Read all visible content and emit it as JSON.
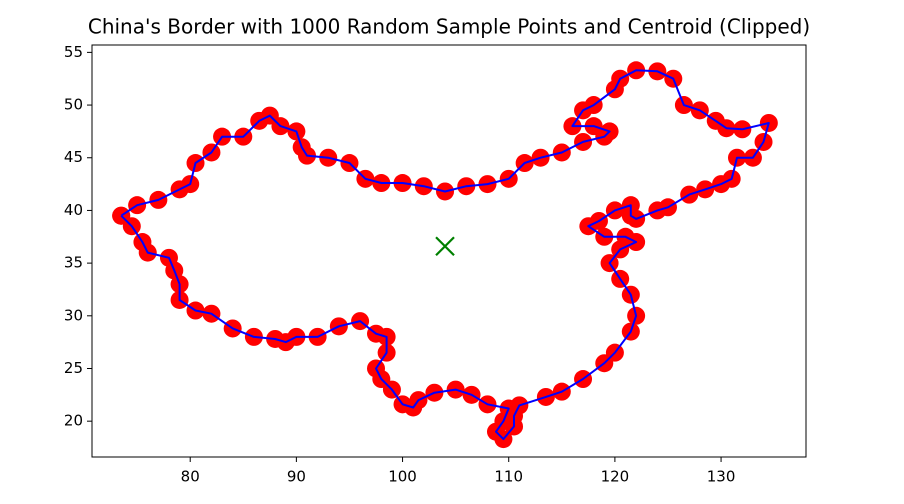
{
  "chart_data": {
    "type": "line",
    "title": "China's Border with 1000 Random Sample Points and Centroid (Clipped)",
    "xlim": [
      70.75,
      138.0
    ],
    "ylim": [
      16.6,
      55.7
    ],
    "xticks": [
      80,
      90,
      100,
      110,
      120,
      130
    ],
    "yticks": [
      20,
      25,
      30,
      35,
      40,
      45,
      50,
      55
    ],
    "series": [
      {
        "type": "scatter",
        "marker": "o",
        "color": "red",
        "x": [
          73.5,
          75,
          77,
          79,
          80,
          80.5,
          82,
          83,
          85,
          86.5,
          87.5,
          88.5,
          90,
          90.5,
          91,
          93,
          95,
          96.5,
          98,
          100,
          102,
          104,
          106,
          108,
          110,
          111.5,
          113,
          115,
          117,
          119,
          119.5,
          118,
          116,
          117,
          118,
          120,
          120.5,
          122,
          124,
          125.5,
          126.5,
          128,
          129.5,
          130.5,
          132,
          134.5,
          134,
          133,
          131.5,
          131,
          130,
          128.5,
          127,
          125,
          124,
          122,
          121.5,
          121.5,
          120,
          118.5,
          117.5,
          119,
          121,
          122,
          120.5,
          119.5,
          120.5,
          121.5,
          122,
          121.5,
          120,
          119,
          117,
          115,
          113.5,
          111,
          110.5,
          110.5,
          109.5,
          108.8,
          109.5,
          110,
          108,
          106.5,
          105,
          103,
          101.5,
          101,
          100,
          99,
          98,
          97.5,
          98.5,
          98.5,
          97.5,
          96,
          94,
          92,
          90,
          89,
          88,
          86,
          84,
          82,
          80.5,
          79,
          79,
          78.5,
          78,
          76,
          75.5,
          74.5,
          73.5
        ],
        "values": [
          39.5,
          40.5,
          41,
          42,
          42.5,
          44.5,
          45.5,
          47,
          47,
          48.5,
          49,
          48,
          47.5,
          46,
          45.2,
          45,
          44.5,
          43,
          42.6,
          42.6,
          42.3,
          41.8,
          42.3,
          42.5,
          43,
          44.5,
          45,
          45.5,
          46.5,
          47,
          47.5,
          48,
          48,
          49.5,
          50,
          51.5,
          52.5,
          53.3,
          53.2,
          52.5,
          50,
          49.5,
          48.5,
          47.8,
          47.7,
          48.3,
          46.5,
          45,
          45,
          43,
          42.5,
          42,
          41.5,
          40.3,
          40,
          39.2,
          39.5,
          40.5,
          40,
          39,
          38.5,
          37.5,
          37.5,
          37,
          36.3,
          35,
          33.5,
          32,
          30,
          28.5,
          26.5,
          25.5,
          24,
          22.8,
          22.3,
          21.5,
          20.5,
          19.5,
          18.3,
          19,
          20,
          21.2,
          21.6,
          22.5,
          23,
          22.7,
          22,
          21.3,
          21.6,
          23,
          24,
          25,
          26.5,
          28,
          28.3,
          29.5,
          29,
          28,
          28,
          27.5,
          27.8,
          28,
          28.8,
          30.2,
          30.5,
          31.5,
          33,
          34.3,
          35.5,
          36,
          37,
          38.5,
          39.5
        ]
      },
      {
        "type": "line",
        "color": "blue",
        "x": [
          73.5,
          75,
          77,
          79,
          80,
          80.5,
          82,
          83,
          85,
          86.5,
          87.5,
          88.5,
          90,
          90.5,
          91,
          93,
          95,
          96.5,
          98,
          100,
          102,
          104,
          106,
          108,
          110,
          111.5,
          113,
          115,
          117,
          119,
          119.5,
          118,
          116,
          117,
          118,
          120,
          120.5,
          122,
          124,
          125.5,
          126.5,
          128,
          129.5,
          130.5,
          132,
          134.5,
          134,
          133,
          131.5,
          131,
          130,
          128.5,
          127,
          125,
          124,
          122,
          121.5,
          121.5,
          120,
          118.5,
          117.5,
          119,
          121,
          122,
          120.5,
          119.5,
          120.5,
          121.5,
          122,
          121.5,
          120,
          119,
          117,
          115,
          113.5,
          111,
          110.5,
          110.5,
          109.5,
          108.8,
          109.5,
          110,
          108,
          106.5,
          105,
          103,
          101.5,
          101,
          100,
          99,
          98,
          97.5,
          98.5,
          98.5,
          97.5,
          96,
          94,
          92,
          90,
          89,
          88,
          86,
          84,
          82,
          80.5,
          79,
          79,
          78.5,
          78,
          76,
          75.5,
          74.5,
          73.5
        ],
        "values": [
          39.5,
          40.5,
          41,
          42,
          42.5,
          44.5,
          45.5,
          47,
          47,
          48.5,
          49,
          48,
          47.5,
          46,
          45.2,
          45,
          44.5,
          43,
          42.6,
          42.6,
          42.3,
          41.8,
          42.3,
          42.5,
          43,
          44.5,
          45,
          45.5,
          46.5,
          47,
          47.5,
          48,
          48,
          49.5,
          50,
          51.5,
          52.5,
          53.3,
          53.2,
          52.5,
          50,
          49.5,
          48.5,
          47.8,
          47.7,
          48.3,
          46.5,
          45,
          45,
          43,
          42.5,
          42,
          41.5,
          40.3,
          40,
          39.2,
          39.5,
          40.5,
          40,
          39,
          38.5,
          37.5,
          37.5,
          37,
          36.3,
          35,
          33.5,
          32,
          30,
          28.5,
          26.5,
          25.5,
          24,
          22.8,
          22.3,
          21.5,
          20.5,
          19.5,
          18.3,
          19,
          20,
          21.2,
          21.6,
          22.5,
          23,
          22.7,
          22,
          21.3,
          21.6,
          23,
          24,
          25,
          26.5,
          28,
          28.3,
          29.5,
          29,
          28,
          28,
          27.5,
          27.8,
          28,
          28.8,
          30.2,
          30.5,
          31.5,
          33,
          34.3,
          35.5,
          36,
          37,
          38.5,
          39.5
        ]
      },
      {
        "type": "scatter",
        "marker": "x",
        "color": "green",
        "x": [
          104.0
        ],
        "values": [
          36.6
        ]
      }
    ]
  }
}
